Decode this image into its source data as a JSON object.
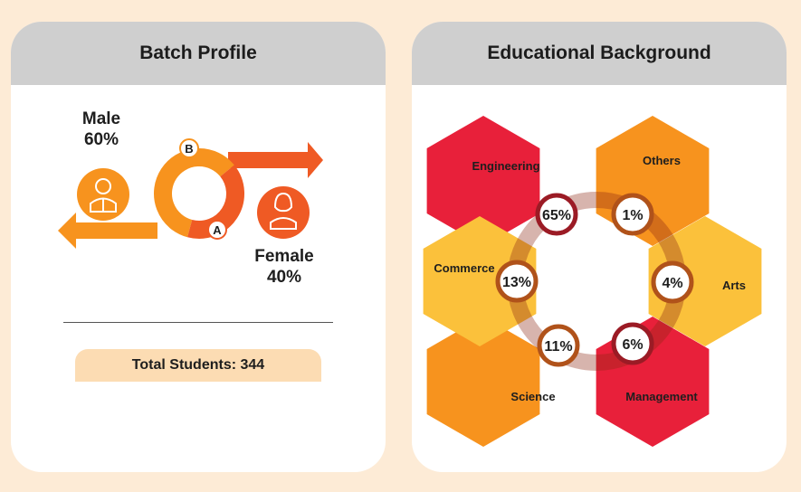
{
  "batch_profile": {
    "title": "Batch Profile",
    "male_label": "Male",
    "male_value": "60%",
    "female_label": "Female",
    "female_value": "40%",
    "ring_label_a": "A",
    "ring_label_b": "B",
    "total_students": "Total Students: 344",
    "male_color": "#f7931e",
    "female_color": "#ef5a24"
  },
  "educational_background": {
    "title": "Educational Background"
  },
  "chart_data": [
    {
      "type": "pie",
      "title": "Batch Profile",
      "categories": [
        "Male",
        "Female"
      ],
      "values": [
        60,
        40
      ],
      "colors": [
        "#f7931e",
        "#ef5a24"
      ],
      "total": "Total Students: 344"
    },
    {
      "type": "pie",
      "title": "Educational Background",
      "categories": [
        "Engineering",
        "Others",
        "Arts",
        "Management",
        "Science",
        "Commerce"
      ],
      "values": [
        65,
        1,
        4,
        6,
        11,
        13
      ],
      "labels": [
        "65%",
        "1%",
        "4%",
        "6%",
        "11%",
        "13%"
      ],
      "colors": [
        "#e8203a",
        "#f7931e",
        "#fbc13b",
        "#e8203a",
        "#f7931e",
        "#fbc13b"
      ]
    }
  ]
}
